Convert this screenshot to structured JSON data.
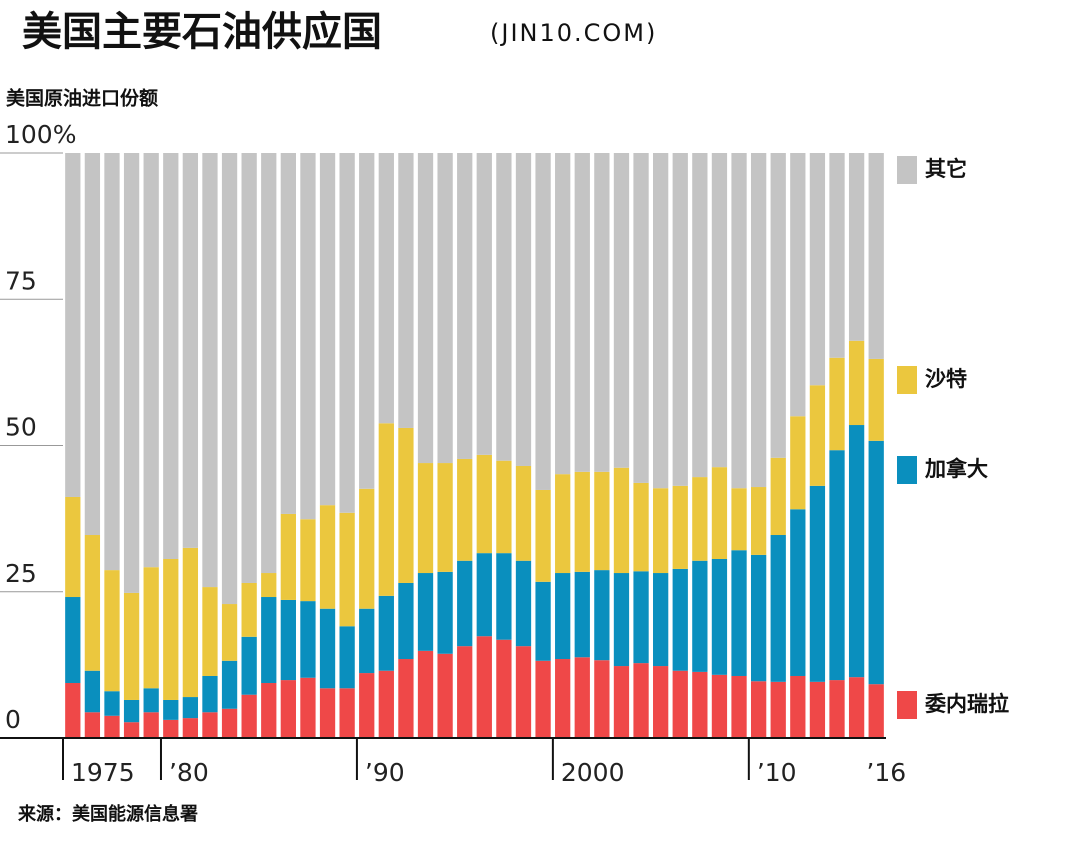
{
  "chart_data": {
    "type": "stacked_bar",
    "title": "美国主要石油供应国",
    "title_suffix": "(JIN10.COM)",
    "y_label": "美国原油进口份额",
    "source": "来源：美国能源信息署",
    "categories": [
      "1975",
      null,
      null,
      null,
      null,
      "’80",
      null,
      null,
      null,
      null,
      null,
      null,
      null,
      null,
      null,
      "’90",
      null,
      null,
      null,
      null,
      null,
      null,
      null,
      null,
      null,
      "2000",
      null,
      null,
      null,
      null,
      null,
      null,
      null,
      null,
      null,
      "’10",
      null,
      null,
      null,
      null,
      null,
      "’16"
    ],
    "ylim": [
      0,
      100
    ],
    "yticks": [
      0,
      25,
      50,
      75,
      {
        "value": 100,
        "label": "100%"
      }
    ],
    "series": [
      {
        "name": "委内瑞拉",
        "color": "#ef4848",
        "values": [
          9.4,
          4.4,
          3.8,
          2.7,
          4.4,
          3.1,
          3.4,
          4.4,
          5.0,
          7.4,
          9.4,
          9.9,
          10.3,
          8.5,
          8.5,
          11.1,
          11.5,
          13.5,
          14.9,
          14.4,
          15.7,
          17.4,
          16.8,
          15.7,
          13.2,
          13.5,
          13.8,
          13.3,
          12.3,
          12.8,
          12.3,
          11.5,
          11.3,
          10.8,
          10.6,
          9.7,
          9.6,
          10.6,
          9.6,
          9.9,
          10.4,
          9.2
        ]
      },
      {
        "name": "加拿大",
        "color": "#0a8fbe",
        "values": [
          14.7,
          7.1,
          4.2,
          3.8,
          4.1,
          3.4,
          3.6,
          6.2,
          8.2,
          9.9,
          14.7,
          13.7,
          13.1,
          13.6,
          10.6,
          11.0,
          12.8,
          13.0,
          13.3,
          14.0,
          14.6,
          14.2,
          14.8,
          14.6,
          13.5,
          14.7,
          14.6,
          15.4,
          15.9,
          15.7,
          15.9,
          17.4,
          19.0,
          19.8,
          21.5,
          21.6,
          25.1,
          28.5,
          33.5,
          39.3,
          43.1,
          41.6
        ]
      },
      {
        "name": "沙特",
        "color": "#ebc73e",
        "values": [
          17.1,
          23.2,
          20.7,
          18.3,
          20.7,
          24.1,
          25.5,
          15.2,
          9.7,
          9.2,
          4.1,
          14.7,
          14.0,
          17.7,
          19.4,
          20.5,
          29.5,
          26.5,
          18.8,
          18.6,
          17.4,
          16.8,
          15.8,
          16.2,
          15.7,
          16.9,
          17.1,
          16.8,
          18.0,
          15.1,
          14.5,
          14.2,
          14.3,
          15.7,
          10.6,
          11.6,
          13.2,
          15.9,
          17.2,
          15.8,
          14.4,
          14.0
        ]
      },
      {
        "name": "其它",
        "color": "#c4c4c4",
        "values": [
          58.8,
          65.3,
          71.3,
          75.2,
          70.8,
          69.4,
          67.5,
          74.2,
          77.1,
          73.5,
          71.8,
          61.7,
          62.6,
          60.2,
          61.5,
          57.4,
          46.2,
          47.0,
          53.0,
          53.0,
          52.3,
          51.6,
          52.6,
          53.5,
          57.6,
          54.9,
          54.5,
          54.5,
          53.8,
          56.4,
          57.3,
          56.9,
          55.4,
          53.7,
          57.3,
          57.1,
          52.1,
          45.0,
          39.7,
          35.0,
          32.1,
          35.2
        ]
      }
    ]
  }
}
